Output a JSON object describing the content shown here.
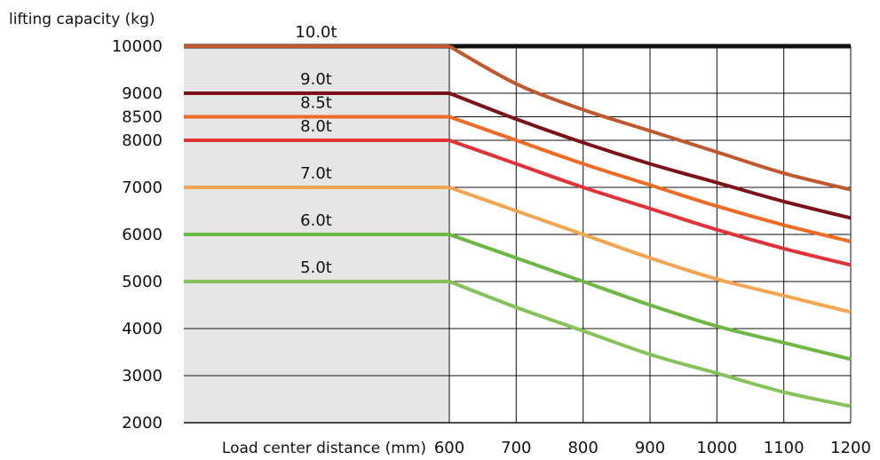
{
  "chart_data": {
    "type": "line",
    "title": "",
    "ylabel": "lifting capacity (kg)",
    "xlabel": "Load center distance (mm)",
    "x_ticks": [
      600,
      700,
      800,
      900,
      1000,
      1100,
      1200
    ],
    "y_ticks": [
      2000,
      3000,
      4000,
      5000,
      6000,
      7000,
      8000,
      8500,
      9000,
      10000
    ],
    "xlim": [
      600,
      1200
    ],
    "ylim": [
      2000,
      10000
    ],
    "grid": true,
    "flat_region_x_start": 0,
    "series": [
      {
        "name": "10.0t",
        "color": "#c0582f",
        "flat_value": 10000,
        "x": [
          600,
          700,
          800,
          900,
          1000,
          1100,
          1200
        ],
        "values": [
          10000,
          9200,
          8650,
          8200,
          7750,
          7300,
          6950
        ]
      },
      {
        "name": "9.0t",
        "color": "#7a1218",
        "flat_value": 9000,
        "x": [
          600,
          700,
          800,
          900,
          1000,
          1100,
          1200
        ],
        "values": [
          9000,
          8450,
          7950,
          7500,
          7100,
          6700,
          6350
        ]
      },
      {
        "name": "8.5t",
        "color": "#ef6a25",
        "flat_value": 8500,
        "x": [
          600,
          700,
          800,
          900,
          1000,
          1100,
          1200
        ],
        "values": [
          8500,
          8000,
          7500,
          7050,
          6600,
          6200,
          5850
        ]
      },
      {
        "name": "8.0t",
        "color": "#e23238",
        "flat_value": 8000,
        "x": [
          600,
          700,
          800,
          900,
          1000,
          1100,
          1200
        ],
        "values": [
          8000,
          7500,
          7000,
          6550,
          6100,
          5700,
          5350
        ]
      },
      {
        "name": "7.0t",
        "color": "#f5a552",
        "flat_value": 7000,
        "x": [
          600,
          700,
          800,
          900,
          1000,
          1100,
          1200
        ],
        "values": [
          7000,
          6500,
          6000,
          5500,
          5050,
          4700,
          4350
        ]
      },
      {
        "name": "6.0t",
        "color": "#6cb842",
        "flat_value": 6000,
        "x": [
          600,
          700,
          800,
          900,
          1000,
          1100,
          1200
        ],
        "values": [
          6000,
          5500,
          5000,
          4500,
          4050,
          3700,
          3350
        ]
      },
      {
        "name": "5.0t",
        "color": "#85c35a",
        "flat_value": 5000,
        "x": [
          600,
          700,
          800,
          900,
          1000,
          1100,
          1200
        ],
        "values": [
          5000,
          4450,
          3950,
          3450,
          3050,
          2650,
          2350
        ]
      }
    ]
  }
}
